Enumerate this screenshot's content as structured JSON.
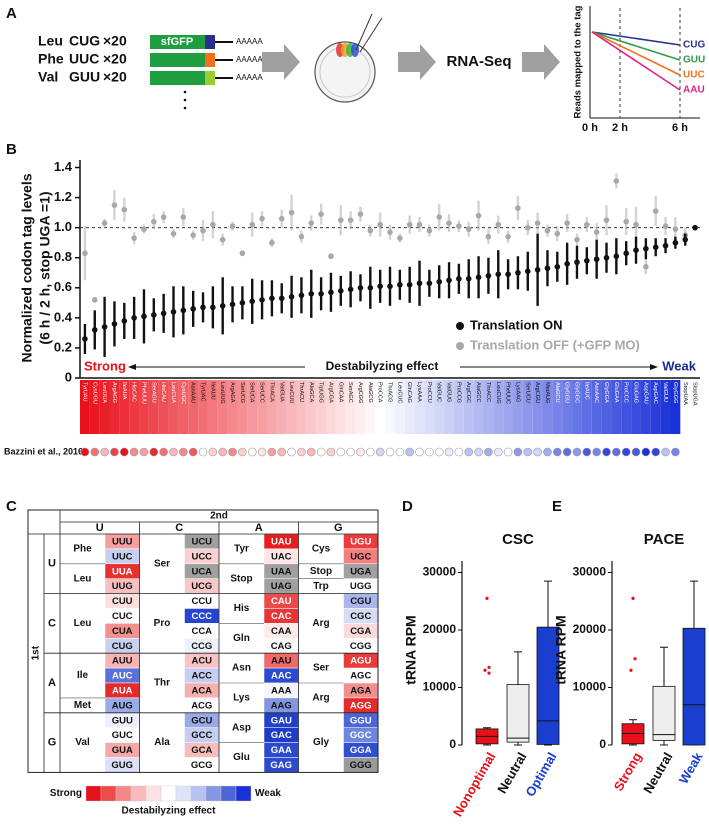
{
  "panel_a": {
    "label": "A",
    "reporter": "sfGFP",
    "reporter_color": "#1e9e3e",
    "polya": "AAAAA",
    "step": "RNA-Seq",
    "constructs": [
      {
        "aa": "Leu",
        "codon": "CUG",
        "codon_color": "#2b2f8f",
        "repeat": "×20",
        "tail_color": "#2b2f8f"
      },
      {
        "aa": "Phe",
        "codon": "UUC",
        "codon_color": "#f0701e",
        "repeat": "×20",
        "tail_color": "#f0701e"
      },
      {
        "aa": "Val",
        "codon": "GUU",
        "codon_color": "#9acd32",
        "repeat": "×20",
        "tail_color": "#9acd32"
      }
    ],
    "schematic": {
      "ylabel": "Reads mapped to the tag",
      "xlabels": [
        "0 h",
        "2 h",
        "6 h"
      ],
      "lines": [
        {
          "name": "CUG",
          "color": "#2b2f8f"
        },
        {
          "name": "GUU",
          "color": "#2ea043"
        },
        {
          "name": "UUC",
          "color": "#f0701e"
        },
        {
          "name": "AAU",
          "color": "#e0208c"
        }
      ]
    }
  },
  "chart_data": [
    {
      "type": "errorbar",
      "panel": "B",
      "ylabel": [
        "Normalized codon tag levels",
        "(6 h / 2 h, stop UGA =1)"
      ],
      "ylim": [
        0,
        1.45
      ],
      "yticks": [
        0,
        0.2,
        0.4,
        0.6,
        0.8,
        {
          "value": 1,
          "label": "1.0"
        },
        1.2,
        1.4
      ],
      "reference_line": 1,
      "scale_colors": [
        "#e8101a",
        "#ffffff",
        "#1a30d8"
      ],
      "annotation": {
        "strong": "Strong",
        "label": "Destabilyzing effect",
        "weak": "Weak"
      },
      "categories": [
        "TyrUAU",
        "CysUGU",
        "LeuUUA",
        "ArgAGG",
        "IleAUA",
        "HisCAC",
        "PheUUU",
        "SerAGU",
        "HisCAU",
        "LeuCUA",
        "CysUGC",
        "AsnAAU",
        "TyrUAC",
        "IleAUU",
        "LeuUUG",
        "ArgAGA",
        "SerUCG",
        "SerUCA",
        "SerUCC",
        "ThrACA",
        "ValGUA",
        "LeuCUU",
        "ThrACU",
        "AlaGCA",
        "TrpUGG",
        "ArgCGA",
        "GlnCAA",
        "SerAGC",
        "ArgCGG",
        "AlaGCG",
        "ProCCA",
        "ThrACG",
        "LeuCUC",
        "GlnCAG",
        "LysAAA",
        "ProCCU",
        "ValGUC",
        "ValGUG",
        "ProCCG",
        "ArgCGC",
        "AlaGCC",
        "ThrACC",
        "LeuCUG",
        "PheUUC",
        "LysAAG",
        "SerUCU",
        "ArgCGU",
        "MetAUG",
        "AlaGCU",
        "GlyGGU",
        "GlyGGC",
        "IleAUC",
        "AsnAAC",
        "GlyGGA",
        "GluGAA",
        "ProCCC",
        "GluGAG",
        "AspGAU",
        "AspGAC",
        "ValGUU",
        "GlyGGG",
        "StopUAA",
        "StopUGA"
      ],
      "series": [
        {
          "name": "Translation OFF (+GFP MO)",
          "color": "#a8a8a8",
          "values": [
            0.83,
            0.52,
            1.03,
            1.15,
            1.12,
            0.93,
            0.99,
            1.04,
            1.07,
            0.96,
            1.07,
            0.95,
            0.98,
            1.02,
            0.92,
            1.01,
            0.83,
            1.02,
            1.06,
            0.9,
            1.06,
            1.1,
            0.94,
            1.03,
            1.09,
            0.81,
            1.05,
            1.05,
            1.09,
            0.98,
            1.02,
            0.97,
            0.93,
            1.02,
            1.02,
            0.98,
            1.07,
            1.03,
            1.01,
            0.99,
            1.08,
            0.94,
            1.02,
            0.94,
            1.13,
            1.0,
            1.03,
            0.98,
            0.96,
            1.03,
            0.92,
            1.02,
            0.97,
            1.05,
            1.31,
            1.04,
            1.02,
            0.74,
            1.11,
            1.01,
            0.99,
            0.95,
            null
          ],
          "errors": [
            0.18,
            0.02,
            0.03,
            0.1,
            0.08,
            0.04,
            0.03,
            0.05,
            0.04,
            0.03,
            0.06,
            0.03,
            0.07,
            0.09,
            0.04,
            0.03,
            0.02,
            0.08,
            0.05,
            0.03,
            0.06,
            0.12,
            0.04,
            0.05,
            0.07,
            0.02,
            0.1,
            0.06,
            0.05,
            0.04,
            0.08,
            0.05,
            0.03,
            0.06,
            0.05,
            0.04,
            0.09,
            0.06,
            0.04,
            0.05,
            0.1,
            0.05,
            0.06,
            0.04,
            0.08,
            0.05,
            0.07,
            0.04,
            0.05,
            0.06,
            0.04,
            0.05,
            0.06,
            0.1,
            0.05,
            0.09,
            0.12,
            0.05,
            0.1,
            0.06,
            0.08,
            0.05,
            null
          ]
        },
        {
          "name": "Translation ON",
          "color": "#111111",
          "values": [
            0.26,
            0.32,
            0.34,
            0.36,
            0.38,
            0.4,
            0.41,
            0.42,
            0.43,
            0.44,
            0.45,
            0.46,
            0.47,
            0.47,
            0.48,
            0.49,
            0.5,
            0.51,
            0.52,
            0.53,
            0.53,
            0.54,
            0.55,
            0.56,
            0.56,
            0.57,
            0.58,
            0.59,
            0.6,
            0.6,
            0.61,
            0.61,
            0.62,
            0.62,
            0.63,
            0.63,
            0.64,
            0.65,
            0.66,
            0.66,
            0.67,
            0.68,
            0.69,
            0.69,
            0.7,
            0.71,
            0.72,
            0.73,
            0.74,
            0.76,
            0.77,
            0.78,
            0.79,
            0.8,
            0.81,
            0.83,
            0.85,
            0.86,
            0.87,
            0.88,
            0.9,
            0.92,
            1.0
          ],
          "errors": [
            0.1,
            0.13,
            0.2,
            0.15,
            0.12,
            0.14,
            0.18,
            0.11,
            0.13,
            0.17,
            0.16,
            0.12,
            0.1,
            0.14,
            0.19,
            0.12,
            0.11,
            0.15,
            0.13,
            0.12,
            0.1,
            0.14,
            0.12,
            0.16,
            0.11,
            0.13,
            0.1,
            0.12,
            0.09,
            0.14,
            0.11,
            0.13,
            0.1,
            0.12,
            0.15,
            0.09,
            0.11,
            0.12,
            0.1,
            0.13,
            0.14,
            0.12,
            0.16,
            0.1,
            0.11,
            0.13,
            0.24,
            0.12,
            0.1,
            0.14,
            0.11,
            0.09,
            0.13,
            0.1,
            0.12,
            0.08,
            0.09,
            0.07,
            0.06,
            0.05,
            0.04,
            0.04,
            null
          ]
        }
      ],
      "bazzini": {
        "label": "Bazzini et al., 2016",
        "scores": [
          -1,
          -0.6,
          -0.3,
          -0.8,
          -1,
          -0.5,
          -0.4,
          -0.9,
          -0.6,
          -0.3,
          -0.5,
          -0.7,
          0,
          -0.2,
          -0.3,
          -0.5,
          -0.2,
          0,
          -0.1,
          -0.4,
          -0.3,
          0,
          -0.2,
          -0.3,
          0,
          -0.2,
          0,
          0,
          -0.1,
          0,
          0.2,
          0,
          0,
          0.3,
          0,
          0,
          0,
          0.1,
          0,
          0.3,
          0.2,
          0.4,
          0.1,
          0,
          0.5,
          0.3,
          0.2,
          0.4,
          0.6,
          0.7,
          0.5,
          0.8,
          0.6,
          0.9,
          0.7,
          0.9,
          0.8,
          1,
          0.9,
          0.3,
          0.6
        ]
      }
    },
    {
      "type": "box",
      "panel": "D",
      "title": "CSC",
      "ylabel": "tRNA RPM",
      "ylim": [
        0,
        32000
      ],
      "yticks": [
        0,
        10000,
        20000,
        30000
      ],
      "categories": [
        "Nonoptimal",
        "Neutral",
        "Optimal"
      ],
      "box_colors": [
        "#e8101a",
        "#eeeeee",
        "#1a3ed0"
      ],
      "label_colors": [
        "#e8101a",
        "#111111",
        "#1a3ed0"
      ],
      "boxes": [
        {
          "min": 0,
          "q1": 200,
          "median": 1500,
          "q3": 2800,
          "max": 3000,
          "outliers": [
            25500,
            13500,
            13000,
            12500
          ]
        },
        {
          "min": 0,
          "q1": 500,
          "median": 1200,
          "q3": 10500,
          "max": 16200,
          "outliers": []
        },
        {
          "min": 0,
          "q1": 100,
          "median": 4200,
          "q3": 20500,
          "max": 28500,
          "outliers": []
        }
      ]
    },
    {
      "type": "box",
      "panel": "E",
      "title": "PACE",
      "ylabel": "tRNA RPM",
      "ylim": [
        0,
        32000
      ],
      "yticks": [
        0,
        10000,
        20000,
        30000
      ],
      "categories": [
        "Strong",
        "Neutral",
        "Weak"
      ],
      "box_colors": [
        "#e8101a",
        "#eeeeee",
        "#1a3ed0"
      ],
      "label_colors": [
        "#e8101a",
        "#111111",
        "#1a3ed0"
      ],
      "boxes": [
        {
          "min": 0,
          "q1": 200,
          "median": 2000,
          "q3": 3700,
          "max": 4400,
          "outliers": [
            25500,
            15000,
            13000
          ]
        },
        {
          "min": 0,
          "q1": 800,
          "median": 1800,
          "q3": 10200,
          "max": 17000,
          "outliers": []
        },
        {
          "min": 0,
          "q1": 0,
          "median": 7000,
          "q3": 20300,
          "max": 28500,
          "outliers": []
        }
      ]
    }
  ],
  "codon_table": {
    "label": "C",
    "col_title": "2nd",
    "row_title": "1st",
    "bases": [
      "U",
      "C",
      "A",
      "G"
    ],
    "blocks": [
      [
        {
          "codons": [
            "UUU",
            "UUC",
            "UUA",
            "UUG"
          ],
          "aa": [
            "Phe",
            null,
            "Leu",
            null
          ],
          "colors": [
            "#f4a0a0",
            "#c8d0f0",
            "#e83030",
            "#f6c0c0"
          ]
        },
        {
          "codons": [
            "UCU",
            "UCC",
            "UCA",
            "UCG"
          ],
          "aa": [
            "Ser",
            null,
            null,
            null
          ],
          "colors": [
            "#a0a0a0",
            "#f8d0d0",
            "#a0a0a0",
            "#f8c8c8"
          ]
        },
        {
          "codons": [
            "UAU",
            "UAC",
            "UAA",
            "UAG"
          ],
          "aa": [
            "Tyr",
            null,
            "Stop",
            null
          ],
          "colors": [
            "#e81c1c",
            "#fbe5e5",
            "#a0a0a0",
            "#a0a0a0"
          ]
        },
        {
          "codons": [
            "UGU",
            "UGC",
            "UGA",
            "UGG"
          ],
          "aa": [
            "Cys",
            null,
            "Stop",
            "Trp"
          ],
          "colors": [
            "#ee3a3a",
            "#f28080",
            "#a0a0a0",
            "#ffffff"
          ]
        }
      ],
      [
        {
          "codons": [
            "CUU",
            "CUC",
            "CUA",
            "CUG"
          ],
          "aa": [
            "Leu",
            null,
            null,
            null
          ],
          "colors": [
            "#fbe0e0",
            "#ffffff",
            "#f39090",
            "#c9d1f1"
          ]
        },
        {
          "codons": [
            "CCU",
            "CCC",
            "CCA",
            "CCG"
          ],
          "aa": [
            "Pro",
            null,
            null,
            null
          ],
          "colors": [
            "#ffffff",
            "#2545d0",
            "#ffffff",
            "#eef0fb"
          ]
        },
        {
          "codons": [
            "CAU",
            "CAC",
            "CAA",
            "CAG"
          ],
          "aa": [
            "His",
            null,
            "Gln",
            null
          ],
          "colors": [
            "#ec4a4a",
            "#e83434",
            "#fcebeb",
            "#fafafa"
          ]
        },
        {
          "codons": [
            "CGU",
            "CGC",
            "CGA",
            "CGG"
          ],
          "aa": [
            "Arg",
            null,
            null,
            null
          ],
          "colors": [
            "#aab6ea",
            "#d6dcf5",
            "#fadada",
            "#ffffff"
          ]
        }
      ],
      [
        {
          "codons": [
            "AUU",
            "AUC",
            "AUA",
            "AUG"
          ],
          "aa": [
            "Ile",
            null,
            null,
            "Met"
          ],
          "colors": [
            "#f6b4b4",
            "#5a72d8",
            "#e52a2a",
            "#9cabe6"
          ]
        },
        {
          "codons": [
            "ACU",
            "ACC",
            "ACA",
            "ACG"
          ],
          "aa": [
            "Thr",
            null,
            null,
            null
          ],
          "colors": [
            "#f7c4c4",
            "#c5cef2",
            "#f5b0b0",
            "#ffffff"
          ]
        },
        {
          "codons": [
            "AAU",
            "AAC",
            "AAA",
            "AAG"
          ],
          "aa": [
            "Asn",
            null,
            "Lys",
            null
          ],
          "colors": [
            "#f06868",
            "#2b4bd2",
            "#f6f6fb",
            "#8396e0"
          ]
        },
        {
          "codons": [
            "AGU",
            "AGC",
            "AGA",
            "AGG"
          ],
          "aa": [
            "Ser",
            null,
            "Arg",
            null
          ],
          "colors": [
            "#ea3b3b",
            "#ffffff",
            "#f29090",
            "#e52c2c"
          ]
        }
      ],
      [
        {
          "codons": [
            "GUU",
            "GUC",
            "GUA",
            "GUG"
          ],
          "aa": [
            "Val",
            null,
            null,
            null
          ],
          "colors": [
            "#eef0fb",
            "#ffffff",
            "#f5a8a8",
            "#dbe0f6"
          ]
        },
        {
          "codons": [
            "GCU",
            "GCC",
            "GCA",
            "GCG"
          ],
          "aa": [
            "Ala",
            null,
            null,
            null
          ],
          "colors": [
            "#9aaae6",
            "#c5cef2",
            "#f7bcbc",
            "#ffffff"
          ]
        },
        {
          "codons": [
            "GAU",
            "GAC",
            "GAA",
            "GAG"
          ],
          "aa": [
            "Asp",
            null,
            "Glu",
            null
          ],
          "colors": [
            "#2340cc",
            "#1f3cc8",
            "#2b4ad0",
            "#2d4bcf"
          ]
        },
        {
          "codons": [
            "GGU",
            "GGC",
            "GGA",
            "GGG"
          ],
          "aa": [
            "Gly",
            null,
            null,
            null
          ],
          "colors": [
            "#4d66d6",
            "#6e86dc",
            "#3050d0",
            "#9a9a9a"
          ]
        }
      ]
    ],
    "legend": {
      "low": "Strong",
      "high": "Weak",
      "title": "Destabilyzing effect",
      "colors": [
        "#e8101a",
        "#ee4a4a",
        "#f48888",
        "#f8baba",
        "#fce2e2",
        "#ffffff",
        "#dfe3f7",
        "#b8c2ee",
        "#8596e2",
        "#4d66d6",
        "#1a30d8"
      ]
    }
  }
}
